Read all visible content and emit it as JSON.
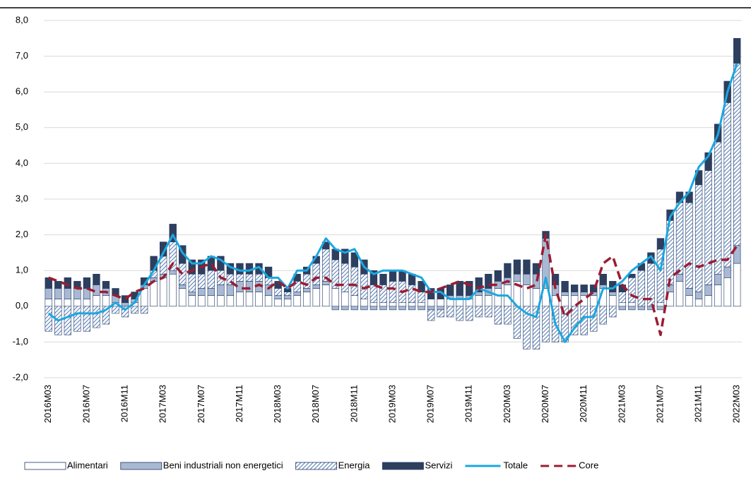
{
  "chart_data": {
    "type": "stacked-bar-line",
    "categories": [
      "2016M03",
      null,
      null,
      null,
      "2016M07",
      null,
      null,
      null,
      "2016M11",
      null,
      null,
      null,
      "2017M03",
      null,
      null,
      null,
      "2017M07",
      null,
      null,
      null,
      "2017M11",
      null,
      null,
      null,
      "2018M03",
      null,
      null,
      null,
      "2018M07",
      null,
      null,
      null,
      "2018M11",
      null,
      null,
      null,
      "2019M03",
      null,
      null,
      null,
      "2019M07",
      null,
      null,
      null,
      "2019M11",
      null,
      null,
      null,
      "2020M03",
      null,
      null,
      null,
      "2020M07",
      null,
      null,
      null,
      "2020M11",
      null,
      null,
      null,
      "2021M03",
      null,
      null,
      null,
      "2021M07",
      null,
      null,
      null,
      "2021M11",
      null,
      null,
      null,
      "2022M03"
    ],
    "series": [
      {
        "name": "Alimentari",
        "kind": "bar",
        "color": "#ffffff",
        "values": [
          0.2,
          0.2,
          0.2,
          0.2,
          0.2,
          0.3,
          0.3,
          0.1,
          0.0,
          0.1,
          0.5,
          0.7,
          0.8,
          0.9,
          0.5,
          0.3,
          0.3,
          0.3,
          0.3,
          0.3,
          0.4,
          0.4,
          0.4,
          0.3,
          0.2,
          0.2,
          0.3,
          0.4,
          0.5,
          0.6,
          0.5,
          0.4,
          0.3,
          0.2,
          0.1,
          0.1,
          0.1,
          0.1,
          0.1,
          0.1,
          0.2,
          0.2,
          0.2,
          0.2,
          0.2,
          0.3,
          0.3,
          0.5,
          0.6,
          0.7,
          0.6,
          0.5,
          0.5,
          0.3,
          0.3,
          0.3,
          0.3,
          0.3,
          0.5,
          0.3,
          0.1,
          0.1,
          0.0,
          0.0,
          0.1,
          0.4,
          0.7,
          0.3,
          0.2,
          0.3,
          0.6,
          0.8,
          1.2
        ]
      },
      {
        "name": "Beni industriali non energetici",
        "kind": "bar",
        "color": "#a9b9d3",
        "values": [
          0.3,
          0.3,
          0.3,
          0.3,
          0.3,
          0.3,
          0.2,
          0.2,
          0.1,
          0.1,
          0.1,
          0.1,
          0.1,
          0.1,
          0.1,
          0.1,
          0.2,
          0.2,
          0.3,
          0.3,
          0.3,
          0.3,
          0.3,
          0.3,
          0.1,
          0.1,
          0.1,
          0.1,
          0.1,
          0.1,
          -0.1,
          -0.1,
          -0.1,
          -0.1,
          -0.1,
          -0.1,
          -0.1,
          -0.1,
          -0.1,
          -0.1,
          -0.1,
          -0.1,
          0.1,
          0.1,
          0.1,
          0.1,
          0.2,
          0.2,
          0.2,
          0.2,
          0.3,
          0.4,
          1.4,
          0.3,
          0.1,
          0.1,
          0.1,
          0.1,
          0.1,
          0.1,
          -0.1,
          -0.1,
          -0.1,
          -0.1,
          -0.1,
          0.2,
          0.2,
          0.2,
          0.2,
          0.3,
          0.3,
          0.3,
          0.5
        ]
      },
      {
        "name": "Energia",
        "kind": "bar",
        "color": "#5b7fb5",
        "pattern": "hatch",
        "values": [
          -0.7,
          -0.8,
          -0.8,
          -0.7,
          -0.7,
          -0.6,
          -0.5,
          -0.2,
          -0.3,
          -0.2,
          -0.2,
          0.2,
          0.5,
          0.8,
          0.6,
          0.5,
          0.4,
          0.5,
          0.4,
          0.3,
          0.2,
          0.2,
          0.2,
          0.2,
          0.2,
          0.1,
          0.3,
          0.4,
          0.6,
          0.9,
          0.8,
          0.8,
          0.8,
          0.7,
          0.5,
          0.5,
          0.6,
          0.6,
          0.5,
          0.3,
          -0.3,
          -0.2,
          -0.3,
          -0.4,
          -0.4,
          -0.3,
          -0.3,
          -0.5,
          -0.5,
          -0.9,
          -1.2,
          -1.2,
          -1.0,
          -1.0,
          -1.0,
          -0.8,
          -0.8,
          -0.7,
          -0.5,
          -0.3,
          0.3,
          0.7,
          1.0,
          1.2,
          1.5,
          1.8,
          2.0,
          2.4,
          3.0,
          3.2,
          3.7,
          4.6,
          5.1
        ]
      },
      {
        "name": "Servizi",
        "kind": "bar",
        "color": "#2e3f5e",
        "values": [
          0.3,
          0.2,
          0.3,
          0.2,
          0.3,
          0.3,
          0.2,
          0.2,
          0.2,
          0.2,
          0.2,
          0.4,
          0.4,
          0.5,
          0.5,
          0.4,
          0.4,
          0.4,
          0.4,
          0.3,
          0.3,
          0.3,
          0.3,
          0.3,
          0.2,
          0.1,
          0.2,
          0.2,
          0.2,
          0.2,
          0.3,
          0.4,
          0.4,
          0.4,
          0.4,
          0.3,
          0.3,
          0.3,
          0.3,
          0.3,
          0.3,
          0.3,
          0.3,
          0.4,
          0.4,
          0.4,
          0.4,
          0.3,
          0.4,
          0.4,
          0.4,
          0.3,
          0.2,
          0.3,
          0.3,
          0.2,
          0.2,
          0.2,
          0.3,
          0.3,
          0.2,
          0.1,
          0.2,
          0.3,
          0.3,
          0.3,
          0.3,
          0.3,
          0.4,
          0.5,
          0.5,
          0.6,
          0.7
        ]
      },
      {
        "name": "Totale",
        "kind": "line",
        "color": "#1aa7e0",
        "values": [
          -0.2,
          -0.4,
          -0.3,
          -0.2,
          -0.2,
          -0.2,
          -0.1,
          0.1,
          -0.1,
          0.1,
          0.6,
          1.0,
          1.5,
          2.0,
          1.5,
          1.2,
          1.2,
          1.4,
          1.3,
          1.1,
          1.0,
          1.0,
          1.1,
          0.8,
          0.8,
          0.5,
          1.0,
          1.0,
          1.4,
          1.9,
          1.6,
          1.5,
          1.6,
          1.1,
          0.9,
          1.0,
          1.0,
          1.0,
          0.9,
          0.8,
          0.4,
          0.4,
          0.2,
          0.2,
          0.2,
          0.5,
          0.4,
          0.3,
          0.3,
          0.0,
          -0.2,
          -0.3,
          0.8,
          -0.5,
          -1.0,
          -0.6,
          -0.3,
          -0.3,
          0.5,
          0.5,
          0.7,
          1.0,
          1.2,
          1.4,
          1.0,
          2.5,
          2.9,
          3.2,
          3.9,
          4.2,
          4.8,
          6.0,
          6.8
        ]
      },
      {
        "name": "Core",
        "kind": "line",
        "dashed": true,
        "color": "#9b1c33",
        "values": [
          0.8,
          0.7,
          0.6,
          0.5,
          0.5,
          0.4,
          0.4,
          0.3,
          0.2,
          0.4,
          0.5,
          0.7,
          0.8,
          1.2,
          0.9,
          1.0,
          1.1,
          1.2,
          0.8,
          0.7,
          0.5,
          0.5,
          0.6,
          0.5,
          0.7,
          0.5,
          0.7,
          0.6,
          0.8,
          0.8,
          0.6,
          0.6,
          0.6,
          0.5,
          0.6,
          0.5,
          0.5,
          0.4,
          0.5,
          0.4,
          0.4,
          0.5,
          0.6,
          0.7,
          0.6,
          0.5,
          0.6,
          0.6,
          0.7,
          0.6,
          0.5,
          0.6,
          2.0,
          0.5,
          -0.3,
          0.0,
          0.2,
          0.4,
          1.2,
          1.4,
          0.6,
          0.3,
          0.2,
          0.2,
          -0.8,
          0.8,
          1.0,
          1.2,
          1.1,
          1.2,
          1.3,
          1.3,
          1.7
        ]
      }
    ],
    "ylim": [
      -2,
      8
    ],
    "yticks": [
      {
        "value": -2,
        "label": "-2,0"
      },
      {
        "value": -1,
        "label": "-1,0"
      },
      {
        "value": 0,
        "label": "0,0"
      },
      {
        "value": 1,
        "label": "1,0"
      },
      {
        "value": 2,
        "label": "2,0"
      },
      {
        "value": 3,
        "label": "3,0"
      },
      {
        "value": 4,
        "label": "4,0"
      },
      {
        "value": 5,
        "label": "5,0"
      },
      {
        "value": 6,
        "label": "6,0"
      },
      {
        "value": 7,
        "label": "7,0"
      },
      {
        "value": 8,
        "label": "8,0"
      }
    ],
    "grid": true,
    "legend": "bottom"
  }
}
